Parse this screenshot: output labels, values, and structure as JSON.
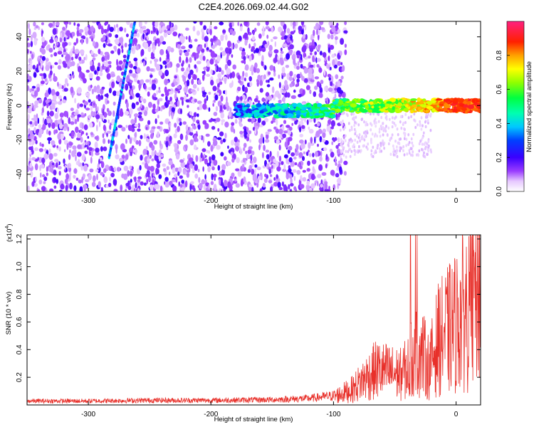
{
  "title": "C2E4.2026.069.02.44.G02",
  "chart_data": [
    {
      "type": "heatmap",
      "xlabel": "Height of straight line (km)",
      "ylabel": "Frequency (Hz)",
      "xlim": [
        -350,
        20
      ],
      "ylim": [
        -50,
        49
      ],
      "x_ticks": [
        -300,
        -200,
        -100,
        0
      ],
      "y_ticks": [
        -40,
        -20,
        0,
        20,
        40
      ],
      "colorbar": {
        "label": "Normalized spectral amplitude",
        "range": [
          0.0,
          1.0
        ],
        "ticks": [
          "0.0",
          "0.2",
          "0.4",
          "0.6",
          "0.8"
        ]
      },
      "features": {
        "noise_region_x": [
          -350,
          -90
        ],
        "diagonal_track": {
          "x_start": -283,
          "y_start": -30,
          "x_end": -262,
          "y_end": 49
        },
        "carrier_x": [
          -180,
          20
        ],
        "carrier_y_near": 0
      }
    },
    {
      "type": "line",
      "xlabel": "Height of straight line (km)",
      "ylabel": "SNR (10 * v/v)",
      "y_multiplier": "(x10",
      "y_multiplier_exp": "4",
      "xlim": [
        -350,
        20
      ],
      "ylim": [
        0,
        1.23
      ],
      "x_ticks": [
        -300,
        -200,
        -100,
        0
      ],
      "y_ticks": [
        "0.2",
        "0.4",
        "0.6",
        "0.8",
        "1.0",
        "1.2"
      ],
      "series_color": "#e8302a",
      "envelope": {
        "x": [
          -350,
          -300,
          -250,
          -200,
          -150,
          -120,
          -100,
          -85,
          -75,
          -65,
          -55,
          -45,
          -38,
          -33,
          -28,
          -22,
          -15,
          -8,
          0,
          8,
          14,
          20
        ],
        "y": [
          0.03,
          0.03,
          0.035,
          0.035,
          0.04,
          0.05,
          0.07,
          0.13,
          0.22,
          0.3,
          0.28,
          0.26,
          0.33,
          0.5,
          0.45,
          0.32,
          0.55,
          0.62,
          0.7,
          0.82,
          0.95,
          1.05
        ]
      }
    }
  ]
}
